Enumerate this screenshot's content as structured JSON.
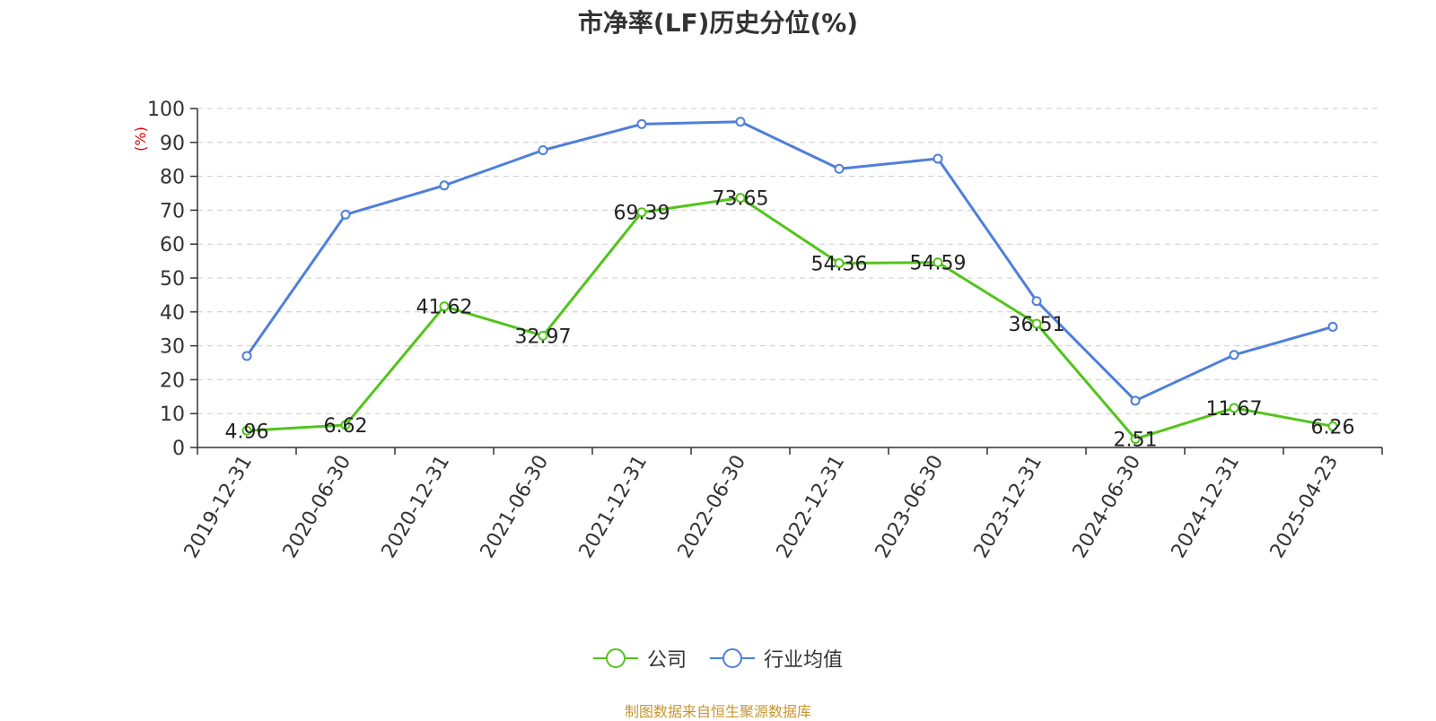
{
  "chart_data": {
    "type": "line",
    "title": "市净率(LF)历史分位(%)",
    "ylabel": "(%)",
    "ylim": [
      0,
      100
    ],
    "yticks": [
      0,
      10,
      20,
      30,
      40,
      50,
      60,
      70,
      80,
      90,
      100
    ],
    "grid": true,
    "legend_position": "bottom-center",
    "categories": [
      "2019-12-31",
      "2020-06-30",
      "2020-12-31",
      "2021-06-30",
      "2021-12-31",
      "2022-06-30",
      "2022-12-31",
      "2023-06-30",
      "2023-12-31",
      "2024-06-30",
      "2024-12-31",
      "2025-04-23"
    ],
    "series": [
      {
        "name": "公司",
        "color": "#52c41a",
        "labeled": true,
        "values": [
          4.96,
          6.62,
          41.62,
          32.97,
          69.39,
          73.65,
          54.36,
          54.59,
          36.51,
          2.51,
          11.67,
          6.26
        ]
      },
      {
        "name": "行业均值",
        "color": "#4e7fdb",
        "labeled": false,
        "values": [
          27.0,
          68.7,
          77.3,
          87.7,
          95.4,
          96.1,
          82.2,
          85.2,
          43.2,
          13.8,
          27.3,
          35.6
        ]
      }
    ]
  },
  "footer": {
    "source": "制图数据来自恒生聚源数据库"
  },
  "colors": {
    "axis": "#333333",
    "grid": "#cccccc",
    "ylabel": "#e60000",
    "source": "#c8962e"
  }
}
